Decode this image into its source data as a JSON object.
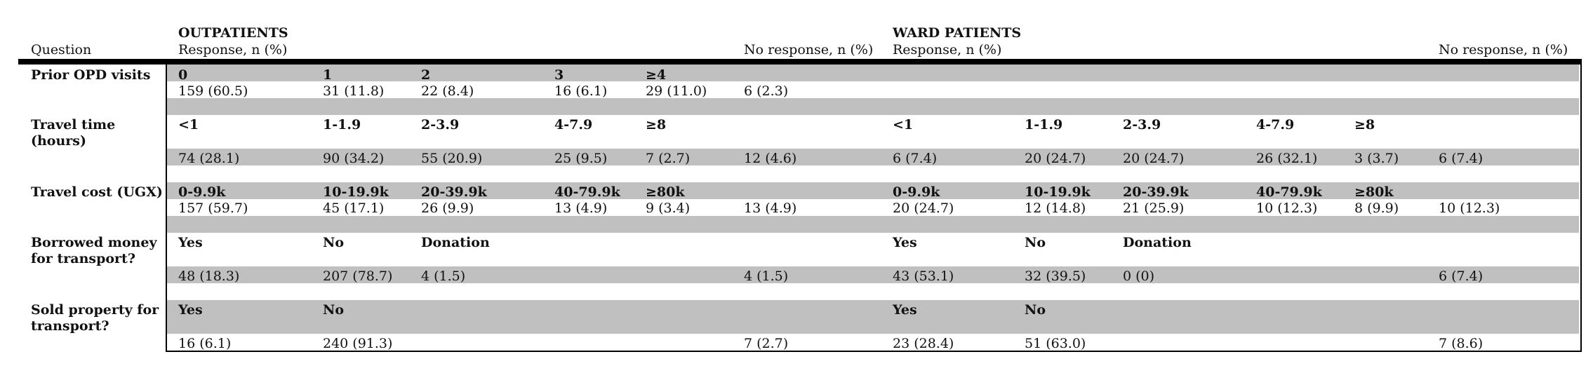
{
  "header": {
    "question_label": "Question",
    "outpatients_title": "OUTPATIENTS",
    "outpatients_response": "Response, n (%)",
    "outpatients_noresponse": "No response, n (%)",
    "ward_title": "WARD PATIENTS",
    "ward_response": "Response, n (%)",
    "ward_noresponse": "No response, n (%)"
  },
  "rows": [
    {
      "question": "Prior OPD visits",
      "op_categories": [
        "0",
        "1",
        "2",
        "3",
        "≥4"
      ],
      "op_values": [
        "159 (60.5)",
        "31 (11.8)",
        "22 (8.4)",
        "16 (6.1)",
        "29 (11.0)"
      ],
      "op_noresponse": "6 (2.3)",
      "ward_categories": [],
      "ward_values": [],
      "ward_noresponse": ""
    },
    {
      "question": "Travel time (hours)",
      "op_categories": [
        "<1",
        "1-1.9",
        "2-3.9",
        "4-7.9",
        "≥8"
      ],
      "op_values": [
        "74 (28.1)",
        "90 (34.2)",
        "55 (20.9)",
        "25 (9.5)",
        "7 (2.7)"
      ],
      "op_noresponse": "12 (4.6)",
      "ward_categories": [
        "<1",
        "1-1.9",
        "2-3.9",
        "4-7.9",
        "≥8"
      ],
      "ward_values": [
        "6 (7.4)",
        "20 (24.7)",
        "20 (24.7)",
        "26 (32.1)",
        "3 (3.7)"
      ],
      "ward_noresponse": "6 (7.4)"
    },
    {
      "question": "Travel cost (UGX)",
      "op_categories": [
        "0-9.9k",
        "10-19.9k",
        "20-39.9k",
        "40-79.9k",
        "≥80k"
      ],
      "op_values": [
        "157 (59.7)",
        "45 (17.1)",
        "26 (9.9)",
        "13 (4.9)",
        "9 (3.4)"
      ],
      "op_noresponse": "13 (4.9)",
      "ward_categories": [
        "0-9.9k",
        "10-19.9k",
        "20-39.9k",
        "40-79.9k",
        "≥80k"
      ],
      "ward_values": [
        "20 (24.7)",
        "12 (14.8)",
        "21 (25.9)",
        "10 (12.3)",
        "8 (9.9)"
      ],
      "ward_noresponse": "10 (12.3)"
    },
    {
      "question": "Borrowed money for transport?",
      "op_categories": [
        "Yes",
        "No",
        "Donation"
      ],
      "op_values": [
        "48 (18.3)",
        "207 (78.7)",
        "4 (1.5)"
      ],
      "op_noresponse": "4 (1.5)",
      "ward_categories": [
        "Yes",
        "No",
        "Donation"
      ],
      "ward_values": [
        "43 (53.1)",
        "32 (39.5)",
        "0 (0)"
      ],
      "ward_noresponse": "6 (7.4)"
    },
    {
      "question": "Sold property for transport?",
      "op_categories": [
        "Yes",
        "No"
      ],
      "op_values": [
        "16 (6.1)",
        "240 (91.3)"
      ],
      "op_noresponse": "7 (2.7)",
      "ward_categories": [
        "Yes",
        "No"
      ],
      "ward_values": [
        "23 (28.4)",
        "51 (63.0)"
      ],
      "ward_noresponse": "7 (8.6)"
    }
  ]
}
